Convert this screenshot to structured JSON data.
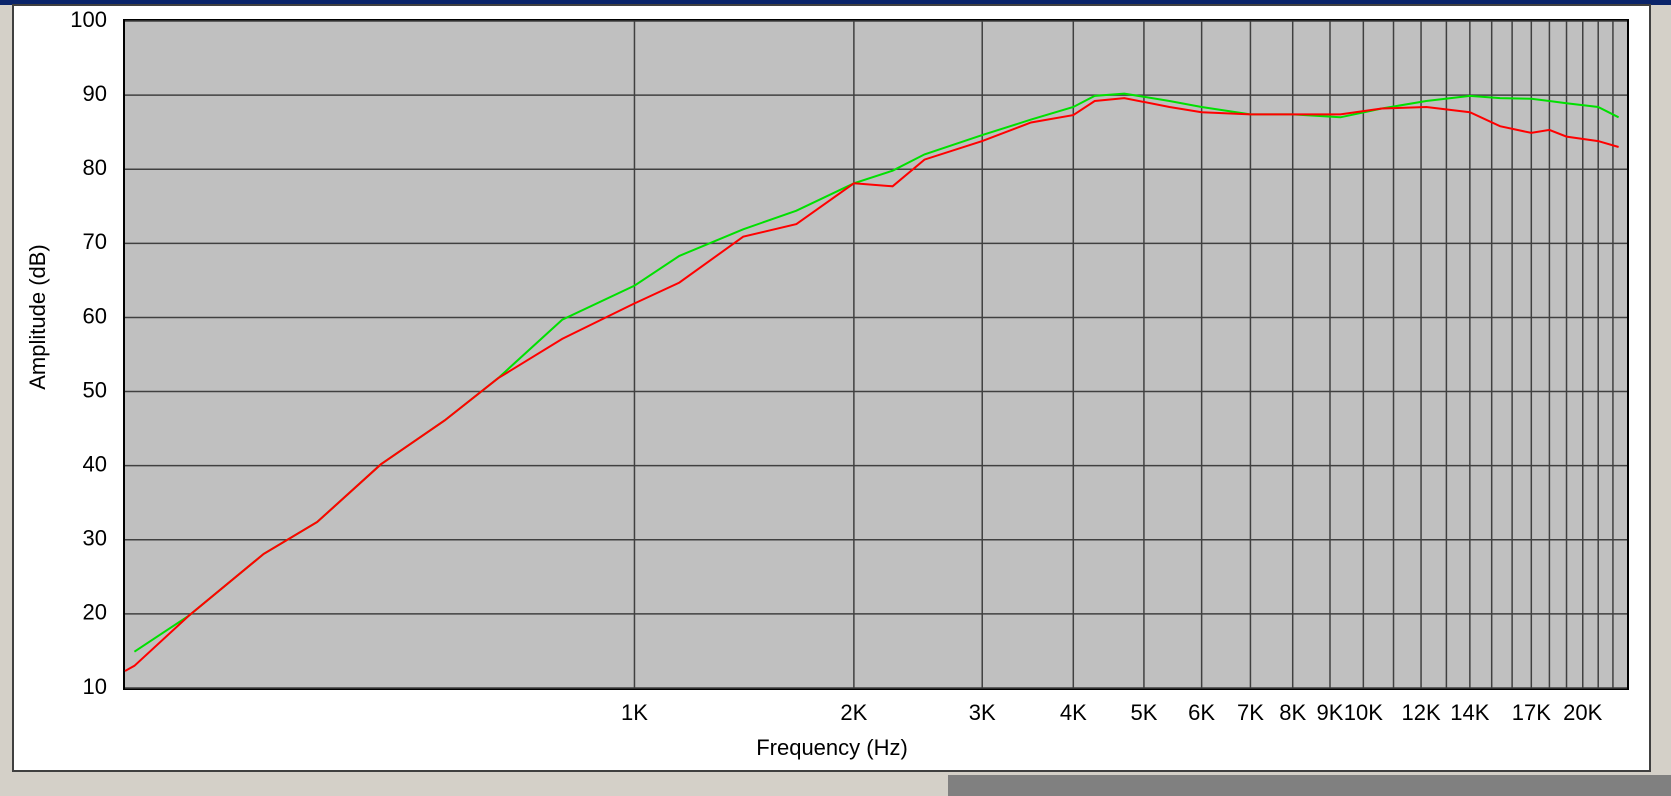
{
  "chart_data": {
    "type": "line",
    "x_label": "Frequency (Hz)",
    "y_label": "Amplitude (dB)",
    "xscale": "log",
    "x": [
      200,
      206,
      245,
      310,
      367,
      449,
      549,
      650,
      796,
      1000,
      1152,
      1410,
      1668,
      2000,
      2260,
      2500,
      3000,
      3500,
      4000,
      4280,
      4700,
      5420,
      6000,
      7000,
      8000,
      9300,
      10600,
      12200,
      14000,
      15400,
      17000,
      18000,
      19000,
      21000,
      22400
    ],
    "series": [
      {
        "color": "#00e000",
        "values": [
          null,
          14.9,
          19.8,
          28.1,
          32.4,
          40.2,
          46.1,
          51.8,
          59.7,
          64.3,
          68.3,
          71.9,
          74.4,
          78.1,
          79.8,
          82.0,
          84.6,
          86.7,
          88.4,
          89.9,
          90.2,
          89.2,
          88.4,
          87.4,
          87.4,
          87.0,
          88.2,
          89.2,
          89.9,
          89.6,
          89.5,
          89.2,
          88.9,
          88.4,
          87.0
        ]
      },
      {
        "color": "#ff0000",
        "values": [
          12.3,
          13.0,
          19.8,
          28.1,
          32.4,
          40.2,
          46.1,
          51.8,
          57.1,
          61.9,
          64.7,
          70.9,
          72.6,
          78.1,
          77.7,
          81.3,
          83.8,
          86.3,
          87.3,
          89.2,
          89.6,
          88.4,
          87.7,
          87.4,
          87.4,
          87.4,
          88.2,
          88.4,
          87.7,
          85.8,
          84.9,
          85.3,
          84.4,
          83.8,
          83.0
        ]
      }
    ],
    "xlim": [
      200,
      23000
    ],
    "xticks": [
      {
        "value": 1000,
        "label": "1K"
      },
      {
        "value": 2000,
        "label": "2K"
      },
      {
        "value": 3000,
        "label": "3K"
      },
      {
        "value": 4000,
        "label": "4K"
      },
      {
        "value": 5000,
        "label": "5K"
      },
      {
        "value": 6000,
        "label": "6K"
      },
      {
        "value": 7000,
        "label": "7K"
      },
      {
        "value": 8000,
        "label": "8K"
      },
      {
        "value": 9000,
        "label": "9K"
      },
      {
        "value": 10000,
        "label": "10K"
      },
      {
        "value": 12000,
        "label": "12K"
      },
      {
        "value": 14000,
        "label": "14K"
      },
      {
        "value": 17000,
        "label": "17K"
      },
      {
        "value": 20000,
        "label": "20K"
      }
    ],
    "xgrid": [
      11000,
      13000,
      15000,
      16000,
      18000,
      19000,
      21000,
      22000
    ],
    "ylim": [
      10,
      100
    ],
    "yticks": [
      10,
      20,
      30,
      40,
      50,
      60,
      70,
      80,
      90,
      100
    ],
    "grid": true
  }
}
